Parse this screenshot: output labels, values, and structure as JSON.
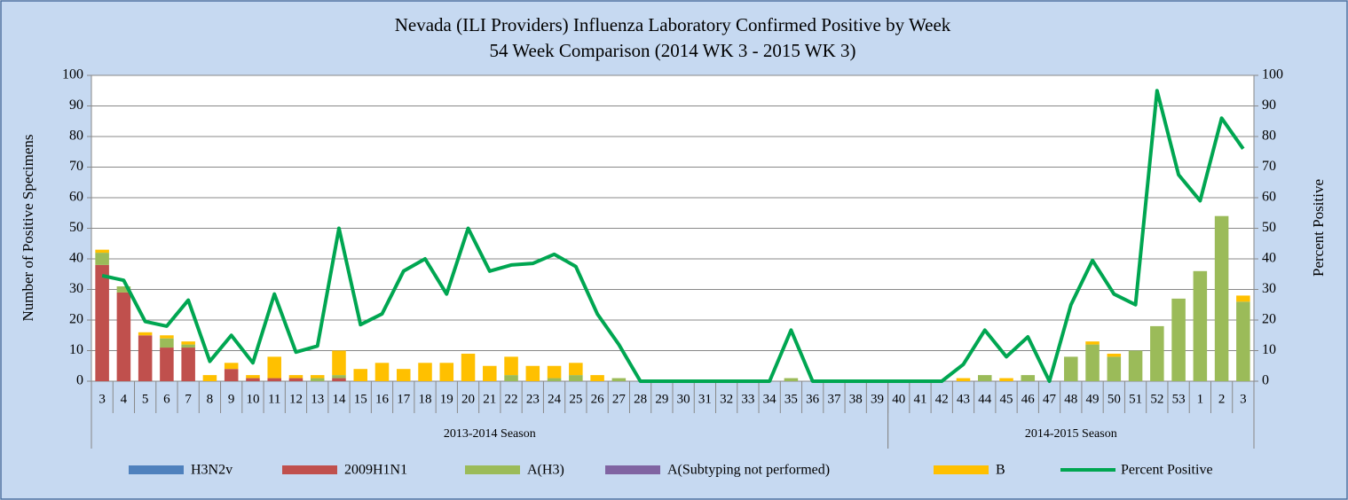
{
  "chart_data": {
    "type": "stacked-bar-line",
    "title": "Nevada (ILI Providers) Influenza Laboratory Confirmed Positive by Week",
    "subtitle": "54 Week Comparison (2014 WK 3 - 2015 WK 3)",
    "ylabel": "Number of Positive Specimens",
    "y2label": "Percent Positive",
    "category_groups": [
      {
        "label": "2013-2014 Season",
        "categories": [
          "3",
          "4",
          "5",
          "6",
          "7",
          "8",
          "9",
          "10",
          "11",
          "12",
          "13",
          "14",
          "15",
          "16",
          "17",
          "18",
          "19",
          "20",
          "21",
          "22",
          "23",
          "24",
          "25",
          "26",
          "27",
          "28",
          "29",
          "30",
          "31",
          "32",
          "33",
          "34",
          "35",
          "36",
          "37",
          "38",
          "39"
        ]
      },
      {
        "label": "2014-2015 Season",
        "categories": [
          "40",
          "41",
          "42",
          "43",
          "44",
          "45",
          "46",
          "47",
          "48",
          "49",
          "50",
          "51",
          "52",
          "53",
          "1",
          "2",
          "3"
        ]
      }
    ],
    "ylim": [
      0,
      100
    ],
    "yticks": [
      0,
      10,
      20,
      30,
      40,
      50,
      60,
      70,
      80,
      90,
      100
    ],
    "y2lim": [
      0,
      100
    ],
    "y2ticks": [
      0,
      10,
      20,
      30,
      40,
      50,
      60,
      70,
      80,
      90,
      100
    ],
    "grid": true,
    "series": [
      {
        "name": "H3N2v",
        "color": "#4f81bd",
        "type": "bar",
        "values": [
          0,
          0,
          0,
          0,
          0,
          0,
          0,
          0,
          0,
          0,
          0,
          0,
          0,
          0,
          0,
          0,
          0,
          0,
          0,
          0,
          0,
          0,
          0,
          0,
          0,
          0,
          0,
          0,
          0,
          0,
          0,
          0,
          0,
          0,
          0,
          0,
          0,
          0,
          0,
          0,
          0,
          0,
          0,
          0,
          0,
          0,
          0,
          0,
          0,
          0,
          0,
          0,
          0,
          0
        ]
      },
      {
        "name": "2009H1N1",
        "color": "#c0504d",
        "type": "bar",
        "values": [
          38,
          29,
          15,
          11,
          11,
          0,
          4,
          1,
          1,
          1,
          0,
          1,
          0,
          0,
          0,
          0,
          0,
          0,
          0,
          0,
          0,
          0,
          0,
          0,
          0,
          0,
          0,
          0,
          0,
          0,
          0,
          0,
          0,
          0,
          0,
          0,
          0,
          0,
          0,
          0,
          0,
          0,
          0,
          0,
          0,
          0,
          0,
          0,
          0,
          0,
          0,
          0,
          0,
          0
        ]
      },
      {
        "name": "A(H3)",
        "color": "#9bbb59",
        "type": "bar",
        "values": [
          4,
          2,
          0,
          3,
          1,
          0,
          0,
          0,
          0,
          0,
          1,
          1,
          0,
          0,
          0,
          0,
          0,
          0,
          0,
          2,
          0,
          1,
          2,
          0,
          1,
          0,
          0,
          0,
          0,
          0,
          0,
          0,
          1,
          0,
          0,
          0,
          0,
          0,
          0,
          0,
          0,
          2,
          0,
          2,
          0,
          8,
          12,
          8,
          10,
          18,
          27,
          36,
          54,
          26
        ]
      },
      {
        "name": "A(Subtyping not performed)",
        "color": "#8064a2",
        "type": "bar",
        "values": [
          0,
          0,
          0,
          0,
          0,
          0,
          0,
          0,
          0,
          0,
          0,
          0,
          0,
          0,
          0,
          0,
          0,
          0,
          0,
          0,
          0,
          0,
          0,
          0,
          0,
          0,
          0,
          0,
          0,
          0,
          0,
          0,
          0,
          0,
          0,
          0,
          0,
          0,
          0,
          0,
          0,
          0,
          0,
          0,
          0,
          0,
          0,
          0,
          0,
          0,
          0,
          0,
          0,
          0
        ]
      },
      {
        "name": "B",
        "color": "#ffc000",
        "type": "bar",
        "values": [
          1,
          0,
          1,
          1,
          1,
          2,
          2,
          1,
          7,
          1,
          1,
          8,
          4,
          6,
          4,
          6,
          6,
          9,
          5,
          6,
          5,
          4,
          4,
          2,
          0,
          0,
          0,
          0,
          0,
          0,
          0,
          0,
          0,
          0,
          0,
          0,
          0,
          0,
          0,
          0,
          1,
          0,
          1,
          0,
          0,
          0,
          1,
          1,
          0,
          0,
          0,
          0,
          0,
          2
        ]
      },
      {
        "name": "Percent Positive",
        "color": "#00a651",
        "type": "line",
        "axis": "y2",
        "values": [
          34.5,
          33,
          19.5,
          18,
          26.5,
          6.5,
          15,
          6,
          28.5,
          9.5,
          11.5,
          50,
          18.5,
          22,
          36,
          40,
          28.5,
          50,
          36,
          38,
          38.5,
          41.5,
          37.5,
          22,
          12,
          0,
          0,
          0,
          0,
          0,
          0,
          0,
          16.7,
          0,
          0,
          0,
          0,
          0,
          0,
          0,
          5.5,
          16.7,
          8,
          14.5,
          0,
          25,
          39.5,
          28.5,
          25,
          95,
          67.5,
          59,
          86,
          76
        ]
      }
    ]
  }
}
